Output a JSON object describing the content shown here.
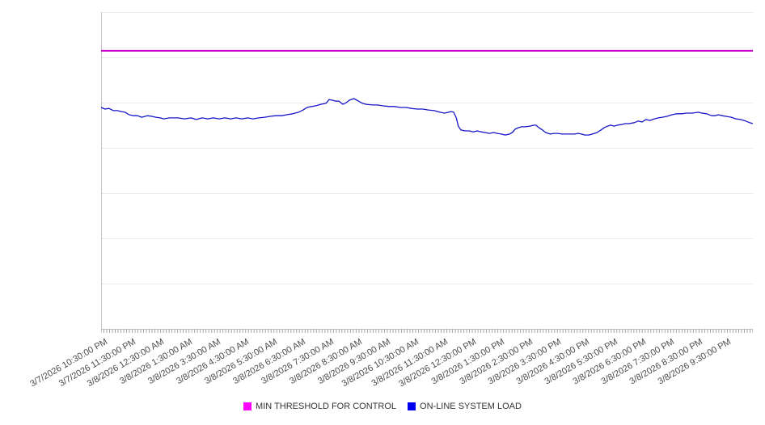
{
  "page": {
    "background": "#ffffff"
  },
  "chart_data": {
    "type": "line",
    "title": "",
    "x_tick_labels": [
      "3/7/2026 10:30:00 PM",
      "3/7/2026 11:30:00 PM",
      "3/8/2026 12:30:00 AM",
      "3/8/2026 1:30:00 AM",
      "3/8/2026 3:30:00 AM",
      "3/8/2026 4:30:00 AM",
      "3/8/2026 5:30:00 AM",
      "3/8/2026 6:30:00 AM",
      "3/8/2026 7:30:00 AM",
      "3/8/2026 8:30:00 AM",
      "3/8/2026 9:30:00 AM",
      "3/8/2026 10:30:00 AM",
      "3/8/2026 11:30:00 AM",
      "3/8/2026 12:30:00 PM",
      "3/8/2026 1:30:00 PM",
      "3/8/2026 2:30:00 PM",
      "3/8/2026 3:30:00 PM",
      "3/8/2026 4:30:00 PM",
      "3/8/2026 5:30:00 PM",
      "3/8/2026 6:30:00 PM",
      "3/8/2026 7:30:00 PM",
      "3/8/2026 8:30:00 PM",
      "3/8/2026 9:30:00 PM"
    ],
    "x_axis": {
      "minor_tick_count": 230,
      "label_rotation_deg": -30
    },
    "y_axis": {
      "tick_labels_visible": false,
      "gridline_divisions": 7,
      "units": "percent of plot height (no y-axis labels shown in image)"
    },
    "grid": "horizontal",
    "legend_position": "bottom-center",
    "series": [
      {
        "name": "MIN THRESHOLD FOR CONTROL",
        "type": "constant-line",
        "color": "#cb00cb",
        "swatch_color": "#ff00ff",
        "value": 87.8
      },
      {
        "name": "ON-LINE SYSTEM LOAD",
        "type": "line",
        "color": "#1414c8",
        "swatch_color": "#0000ee",
        "points": [
          [
            0.0,
            69.9
          ],
          [
            0.6,
            69.4
          ],
          [
            1.2,
            69.6
          ],
          [
            1.9,
            68.9
          ],
          [
            2.5,
            68.9
          ],
          [
            3.1,
            68.6
          ],
          [
            3.7,
            68.4
          ],
          [
            4.3,
            67.6
          ],
          [
            5.0,
            67.3
          ],
          [
            5.6,
            67.3
          ],
          [
            6.2,
            66.8
          ],
          [
            7.1,
            67.3
          ],
          [
            7.8,
            67.1
          ],
          [
            8.4,
            66.8
          ],
          [
            9.1,
            66.6
          ],
          [
            9.6,
            66.3
          ],
          [
            10.5,
            66.6
          ],
          [
            11.8,
            66.6
          ],
          [
            12.8,
            66.3
          ],
          [
            13.8,
            66.6
          ],
          [
            14.6,
            66.1
          ],
          [
            15.5,
            66.6
          ],
          [
            16.4,
            66.3
          ],
          [
            17.2,
            66.6
          ],
          [
            18.1,
            66.3
          ],
          [
            19.0,
            66.6
          ],
          [
            19.9,
            66.3
          ],
          [
            20.7,
            66.6
          ],
          [
            21.6,
            66.3
          ],
          [
            22.5,
            66.6
          ],
          [
            23.3,
            66.3
          ],
          [
            24.2,
            66.6
          ],
          [
            25.1,
            66.8
          ],
          [
            25.9,
            67.1
          ],
          [
            26.8,
            67.3
          ],
          [
            27.7,
            67.3
          ],
          [
            28.5,
            67.6
          ],
          [
            29.4,
            67.9
          ],
          [
            30.3,
            68.4
          ],
          [
            31.0,
            69.1
          ],
          [
            31.6,
            69.9
          ],
          [
            32.3,
            70.2
          ],
          [
            32.9,
            70.4
          ],
          [
            33.7,
            70.9
          ],
          [
            34.5,
            71.2
          ],
          [
            35.0,
            72.4
          ],
          [
            35.5,
            72.2
          ],
          [
            36.0,
            71.9
          ],
          [
            36.5,
            71.9
          ],
          [
            37.1,
            70.9
          ],
          [
            37.6,
            71.4
          ],
          [
            38.1,
            72.2
          ],
          [
            38.8,
            72.7
          ],
          [
            39.5,
            71.9
          ],
          [
            40.1,
            71.2
          ],
          [
            40.7,
            70.9
          ],
          [
            41.6,
            70.7
          ],
          [
            42.4,
            70.7
          ],
          [
            43.3,
            70.4
          ],
          [
            44.2,
            70.2
          ],
          [
            45.0,
            70.2
          ],
          [
            45.9,
            69.9
          ],
          [
            46.8,
            69.9
          ],
          [
            47.6,
            69.6
          ],
          [
            48.5,
            69.4
          ],
          [
            49.4,
            69.4
          ],
          [
            50.2,
            69.1
          ],
          [
            51.1,
            68.9
          ],
          [
            52.0,
            68.4
          ],
          [
            52.7,
            68.1
          ],
          [
            53.3,
            68.4
          ],
          [
            53.7,
            68.6
          ],
          [
            54.1,
            68.4
          ],
          [
            54.5,
            66.6
          ],
          [
            54.8,
            64.0
          ],
          [
            55.2,
            62.8
          ],
          [
            55.8,
            62.5
          ],
          [
            56.5,
            62.5
          ],
          [
            57.1,
            62.2
          ],
          [
            57.7,
            62.5
          ],
          [
            58.3,
            62.2
          ],
          [
            58.9,
            62.0
          ],
          [
            59.6,
            61.7
          ],
          [
            60.2,
            62.0
          ],
          [
            60.8,
            61.7
          ],
          [
            61.4,
            61.5
          ],
          [
            62.0,
            61.2
          ],
          [
            62.7,
            61.5
          ],
          [
            63.2,
            62.2
          ],
          [
            63.5,
            63.0
          ],
          [
            64.0,
            63.5
          ],
          [
            64.5,
            63.8
          ],
          [
            65.1,
            63.8
          ],
          [
            65.8,
            64.0
          ],
          [
            66.4,
            64.3
          ],
          [
            66.7,
            64.3
          ],
          [
            67.2,
            63.5
          ],
          [
            67.7,
            62.8
          ],
          [
            68.2,
            62.0
          ],
          [
            68.9,
            61.5
          ],
          [
            69.5,
            61.7
          ],
          [
            70.1,
            61.7
          ],
          [
            70.7,
            61.5
          ],
          [
            71.3,
            61.5
          ],
          [
            72.0,
            61.5
          ],
          [
            72.6,
            61.5
          ],
          [
            73.2,
            61.7
          ],
          [
            73.7,
            61.5
          ],
          [
            74.2,
            61.2
          ],
          [
            74.8,
            61.2
          ],
          [
            75.4,
            61.5
          ],
          [
            76.1,
            62.0
          ],
          [
            76.7,
            62.8
          ],
          [
            77.2,
            63.5
          ],
          [
            77.7,
            64.0
          ],
          [
            78.2,
            64.3
          ],
          [
            78.7,
            64.0
          ],
          [
            79.2,
            64.3
          ],
          [
            79.8,
            64.5
          ],
          [
            80.4,
            64.8
          ],
          [
            81.0,
            64.8
          ],
          [
            81.8,
            65.1
          ],
          [
            82.4,
            65.6
          ],
          [
            83.0,
            65.3
          ],
          [
            83.6,
            66.1
          ],
          [
            84.2,
            65.8
          ],
          [
            84.9,
            66.3
          ],
          [
            85.5,
            66.6
          ],
          [
            86.1,
            66.8
          ],
          [
            86.8,
            67.1
          ],
          [
            87.6,
            67.6
          ],
          [
            88.3,
            67.9
          ],
          [
            89.1,
            67.9
          ],
          [
            89.8,
            68.1
          ],
          [
            90.7,
            68.1
          ],
          [
            91.6,
            68.4
          ],
          [
            92.2,
            68.1
          ],
          [
            92.9,
            67.9
          ],
          [
            93.7,
            67.3
          ],
          [
            94.2,
            67.3
          ],
          [
            94.7,
            67.6
          ],
          [
            95.3,
            67.3
          ],
          [
            95.9,
            67.1
          ],
          [
            96.7,
            66.8
          ],
          [
            97.4,
            66.3
          ],
          [
            98.1,
            66.1
          ],
          [
            98.9,
            65.6
          ],
          [
            99.5,
            65.1
          ],
          [
            100.0,
            64.8
          ]
        ]
      }
    ],
    "colors": {
      "gridline": "#ebebeb",
      "axis_line": "#c4c4c4",
      "minor_tick": "#a8a8a8",
      "label_text": "#4a4a4a",
      "legend_text": "#333333"
    }
  }
}
